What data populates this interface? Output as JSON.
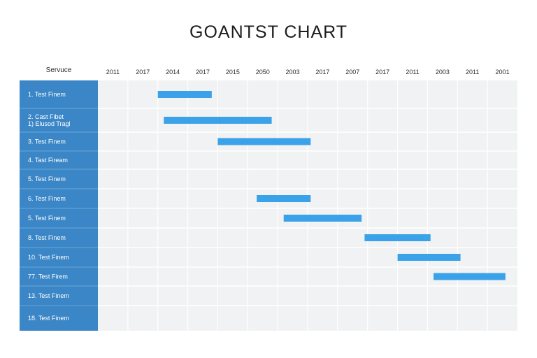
{
  "title": "GOANTST CHART",
  "chart_data": {
    "type": "gantt",
    "title": "GOANTST CHART",
    "row_header": "Servuce",
    "columns": [
      "2011",
      "2017",
      "2014",
      "2017",
      "2015",
      "2050",
      "2003",
      "2017",
      "2007",
      "2017",
      "2011",
      "2003",
      "2011",
      "2001"
    ],
    "rows": [
      [
        "1. Test Finem"
      ],
      [
        "2. Cast Fibet",
        "1) Elusod Tragl"
      ],
      [
        "3. Test Finem"
      ],
      [
        "4. Tast Fiream"
      ],
      [
        "5. Test Finem"
      ],
      [
        "6. Test Finem"
      ],
      [
        "5. Test Finem"
      ],
      [
        "8. Test Finem"
      ],
      [
        "10. Test Finem"
      ],
      [
        "77. Test Firem"
      ],
      [
        "13. Test Finem"
      ],
      [
        "18. Test Finem"
      ]
    ],
    "bars": [
      {
        "row": 0,
        "start": 2.0,
        "end": 3.8
      },
      {
        "row": 1,
        "start": 2.2,
        "end": 5.8
      },
      {
        "row": 2,
        "start": 4.0,
        "end": 7.1
      },
      {
        "row": 5,
        "start": 5.3,
        "end": 7.1
      },
      {
        "row": 6,
        "start": 6.2,
        "end": 8.8
      },
      {
        "row": 7,
        "start": 8.9,
        "end": 11.1
      },
      {
        "row": 8,
        "start": 10.0,
        "end": 12.1
      },
      {
        "row": 9,
        "start": 11.2,
        "end": 13.6
      }
    ],
    "colors": {
      "label_bg": "#3b86c6",
      "label_divider": "#6aa6d8",
      "label_text": "#ffffff",
      "grid_bg": "#f1f2f3",
      "grid_line": "#ffffff",
      "bar": "#3aa2e8",
      "header_text": "#2a2a2a"
    }
  }
}
